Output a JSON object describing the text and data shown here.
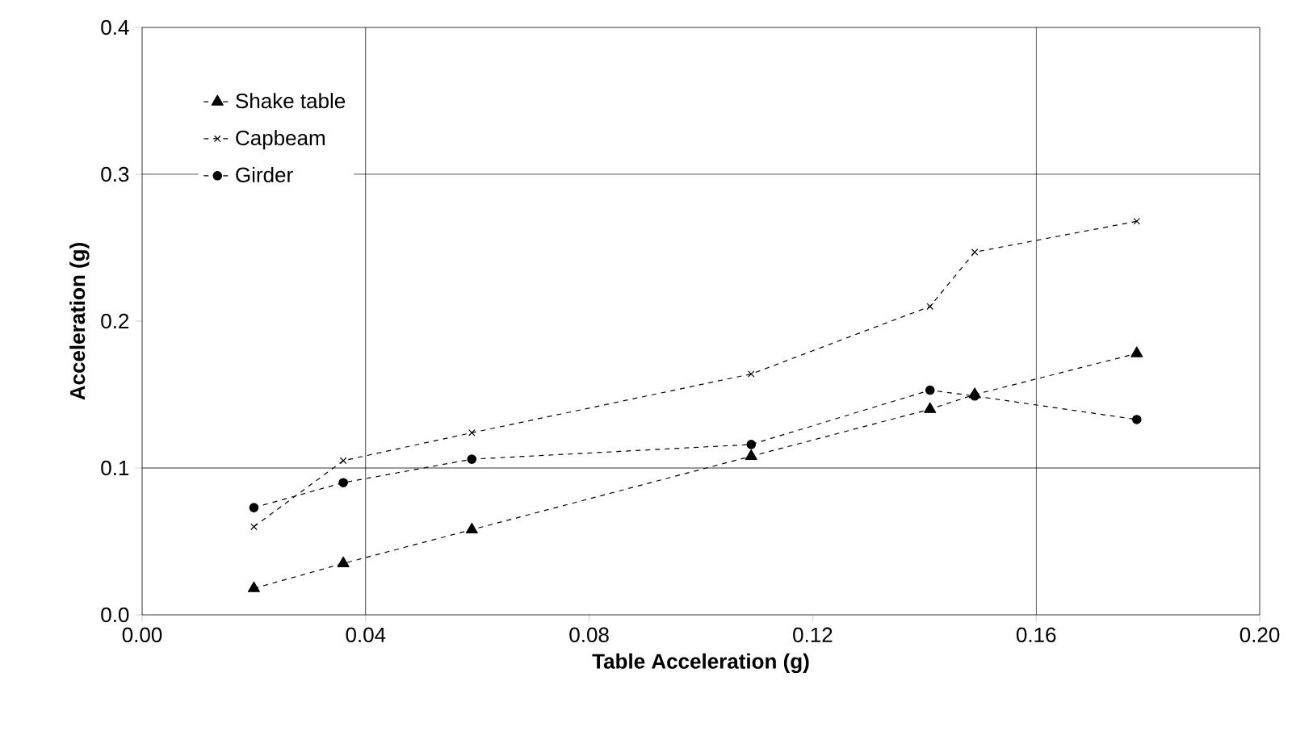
{
  "chart_data": {
    "type": "line",
    "xlabel": "Table Acceleration (g)",
    "ylabel": "Acceleration (g)",
    "x": [
      0.02,
      0.036,
      0.059,
      0.109,
      0.141,
      0.149,
      0.178
    ],
    "series": [
      {
        "name": "Shake table",
        "color": "#000000",
        "marker": "triangle",
        "values": [
          0.018,
          0.035,
          0.058,
          0.108,
          0.14,
          0.15,
          0.178
        ]
      },
      {
        "name": "Capbeam",
        "color": "#000000",
        "marker": "cross",
        "values": [
          0.06,
          0.105,
          0.124,
          0.164,
          0.21,
          0.247,
          0.268
        ]
      },
      {
        "name": "Girder",
        "color": "#000000",
        "marker": "circle",
        "values": [
          0.073,
          0.09,
          0.106,
          0.116,
          0.153,
          0.149,
          0.133
        ]
      }
    ],
    "line_style": "dashed",
    "xlim": [
      0,
      0.2
    ],
    "ylim": [
      0,
      0.4
    ],
    "xticks": [
      {
        "value": 0,
        "label": "0.00"
      },
      {
        "value": 0.04,
        "label": "0.04"
      },
      {
        "value": 0.08,
        "label": "0.08"
      },
      {
        "value": 0.12,
        "label": "0.12"
      },
      {
        "value": 0.16,
        "label": "0.16"
      },
      {
        "value": 0.2,
        "label": "0.20"
      }
    ],
    "yticks": [
      {
        "value": 0,
        "label": "0.0"
      },
      {
        "value": 0.1,
        "label": "0.1"
      },
      {
        "value": 0.2,
        "label": "0.2"
      },
      {
        "value": 0.3,
        "label": "0.3"
      },
      {
        "value": 0.4,
        "label": "0.4"
      }
    ],
    "ref_lines": [
      {
        "axis": "x",
        "value": 0.04
      },
      {
        "axis": "x",
        "value": 0.16
      },
      {
        "axis": "y",
        "value": 0.1
      },
      {
        "axis": "y",
        "value": 0.3
      }
    ],
    "legend": "top left"
  }
}
